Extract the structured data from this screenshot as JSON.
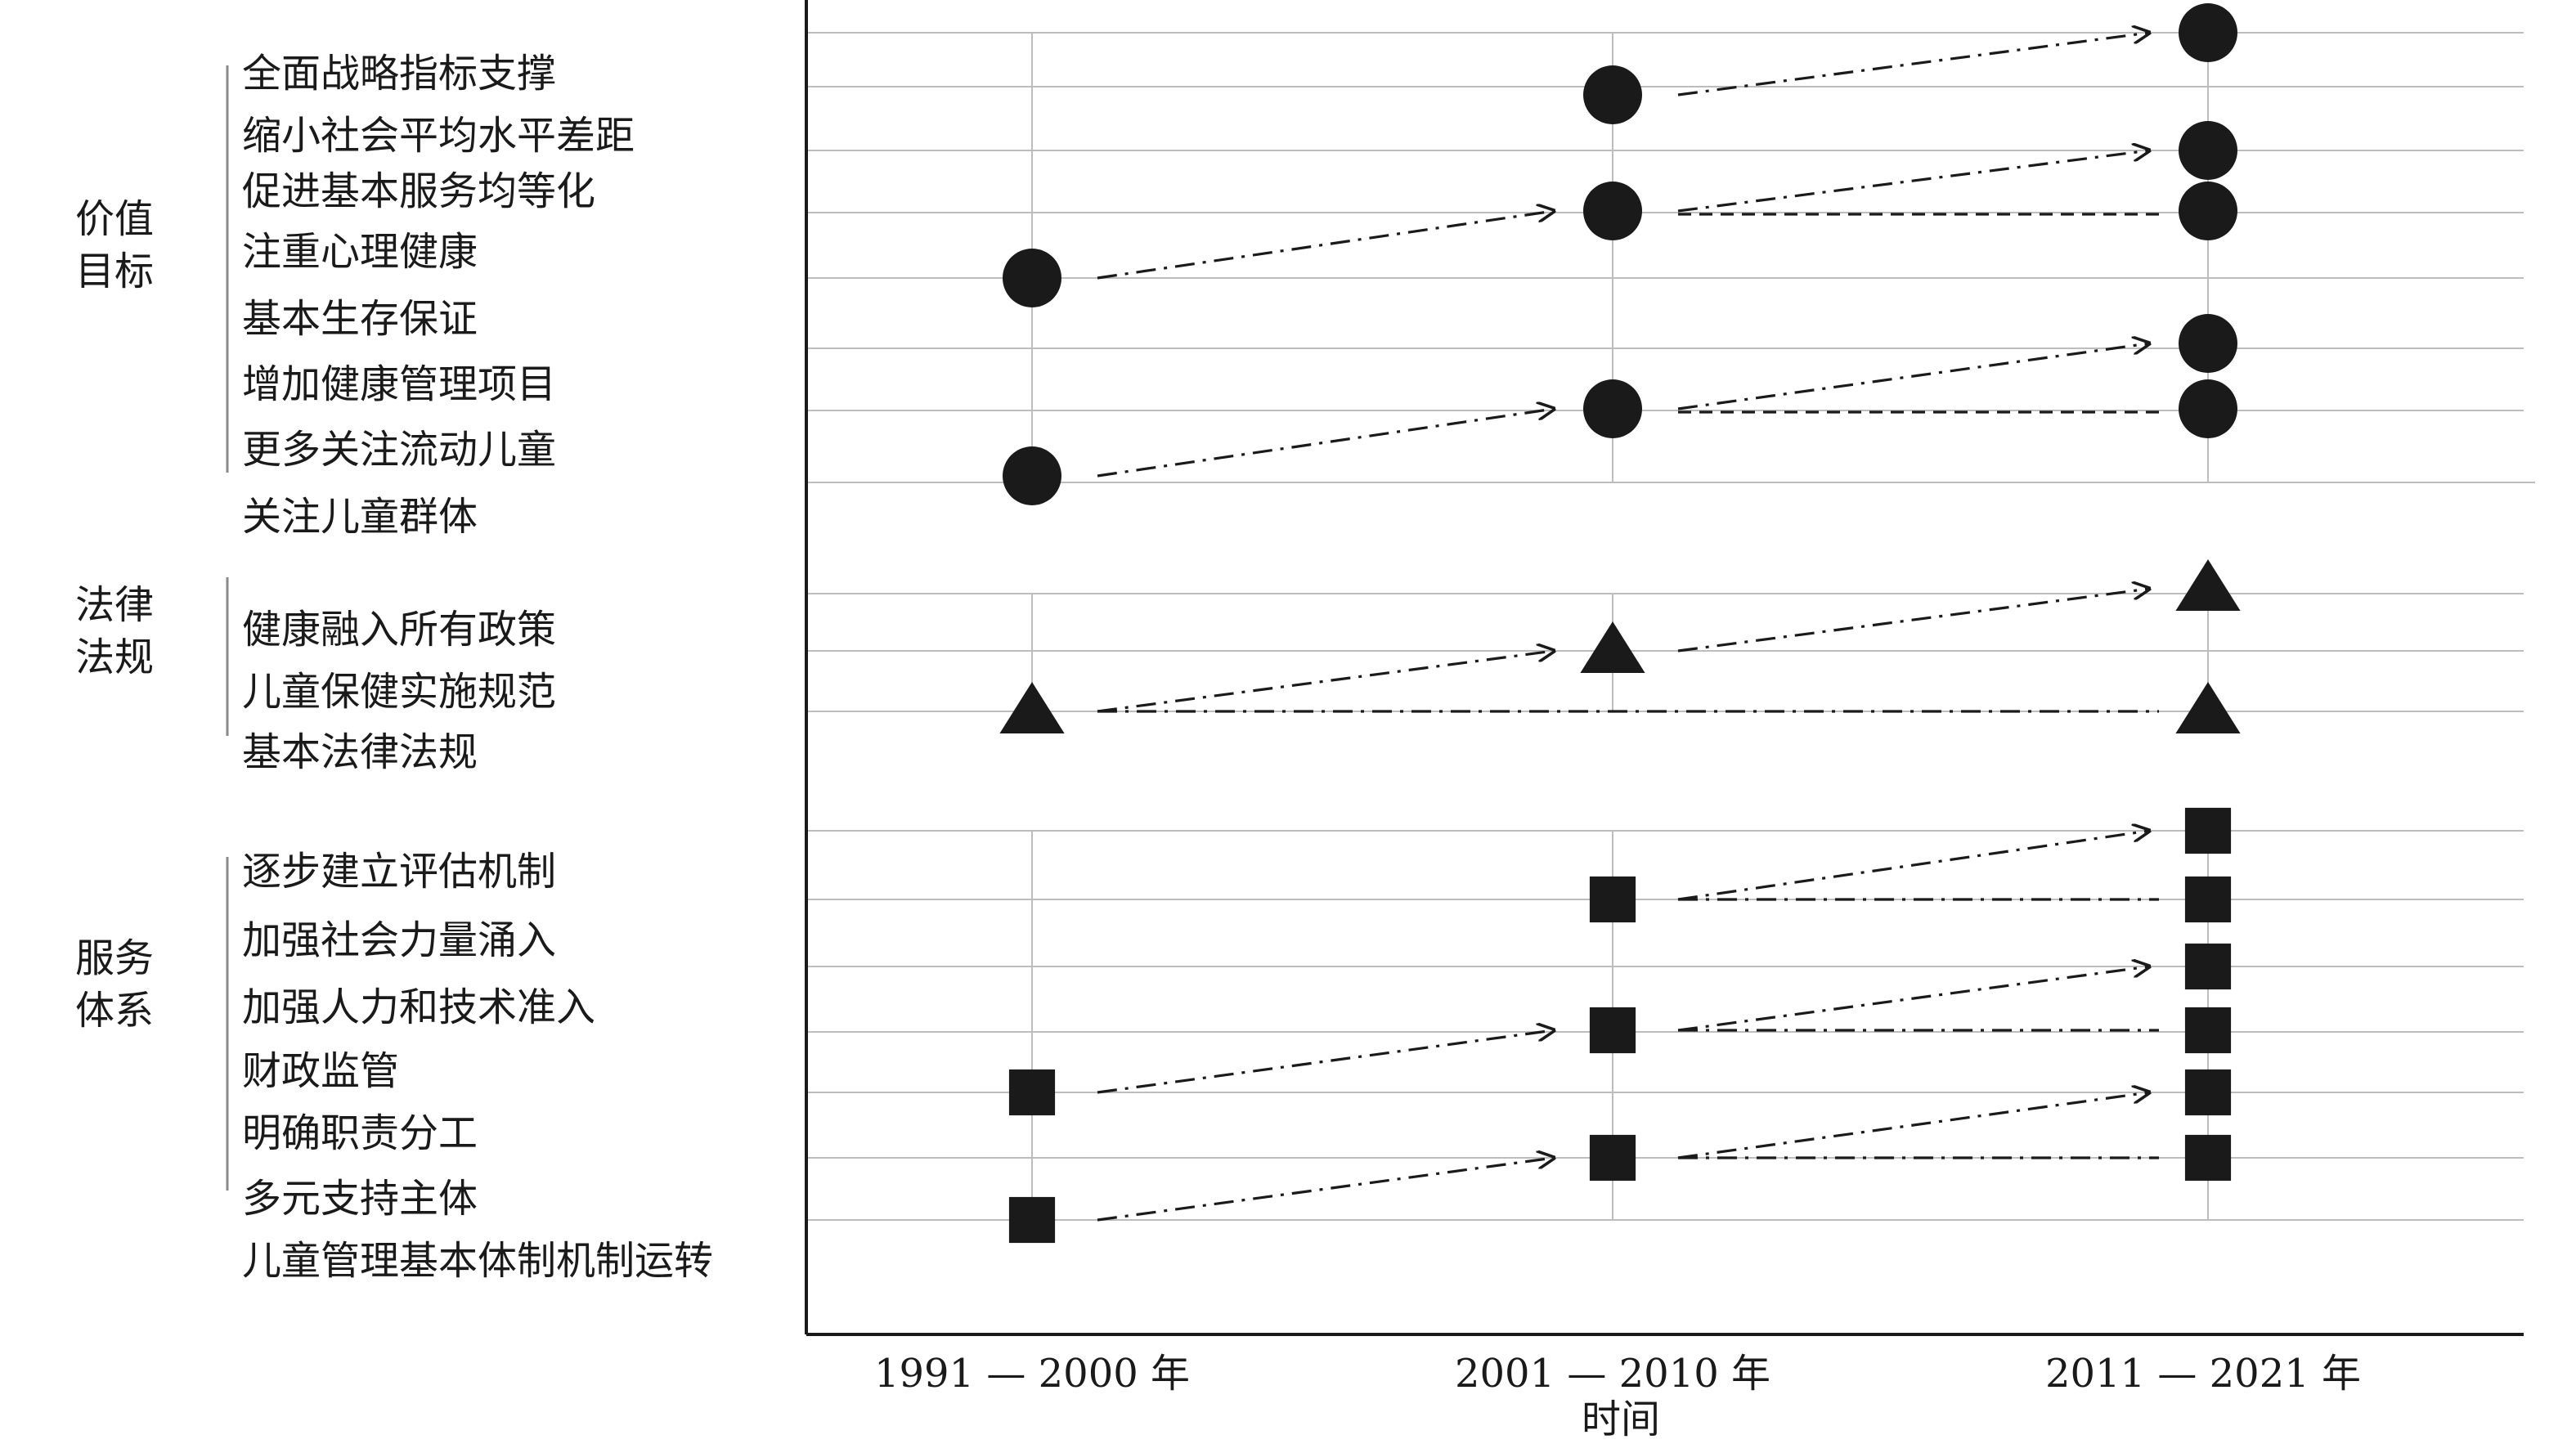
{
  "axis": {
    "x_title": "时间",
    "periods": [
      "1991 — 2000 年",
      "2001 — 2010 年",
      "2011 — 2021 年"
    ]
  },
  "groups": [
    {
      "id": "value-goals",
      "label_line1": "价值",
      "label_line2": "目标",
      "marker": "circle",
      "items": [
        "全面战略指标支撑",
        "缩小社会平均水平差距",
        "促进基本服务均等化",
        "注重心理健康",
        "基本生存保证",
        "增加健康管理项目",
        "更多关注流动儿童",
        "关注儿童群体"
      ]
    },
    {
      "id": "laws-regulations",
      "label_line1": "法律",
      "label_line2": "法规",
      "marker": "triangle",
      "items": [
        "健康融入所有政策",
        "儿童保健实施规范",
        "基本法律法规"
      ]
    },
    {
      "id": "service-system",
      "label_line1": "服务",
      "label_line2": "体系",
      "marker": "square",
      "items": [
        "逐步建立评估机制",
        "加强社会力量涌入",
        "加强人力和技术准入",
        "财政监管",
        "明确职责分工",
        "多元支持主体",
        "儿童管理基本体制机制运转"
      ]
    }
  ],
  "markers": [
    {
      "group": 0,
      "period": 0,
      "item": 4,
      "shape": "circle"
    },
    {
      "group": 0,
      "period": 0,
      "item": 7,
      "shape": "circle"
    },
    {
      "group": 0,
      "period": 1,
      "item": 1,
      "shape": "circle"
    },
    {
      "group": 0,
      "period": 1,
      "item": 3,
      "shape": "circle"
    },
    {
      "group": 0,
      "period": 1,
      "item": 6,
      "shape": "circle"
    },
    {
      "group": 0,
      "period": 2,
      "item": 0,
      "shape": "circle"
    },
    {
      "group": 0,
      "period": 2,
      "item": 2,
      "shape": "circle"
    },
    {
      "group": 0,
      "period": 2,
      "item": 3,
      "shape": "circle"
    },
    {
      "group": 0,
      "period": 2,
      "item": 5,
      "shape": "circle"
    },
    {
      "group": 0,
      "period": 2,
      "item": 6,
      "shape": "circle"
    },
    {
      "group": 1,
      "period": 0,
      "item": 2,
      "shape": "triangle"
    },
    {
      "group": 1,
      "period": 1,
      "item": 1,
      "shape": "triangle"
    },
    {
      "group": 1,
      "period": 2,
      "item": 0,
      "shape": "triangle"
    },
    {
      "group": 1,
      "period": 2,
      "item": 2,
      "shape": "triangle"
    },
    {
      "group": 2,
      "period": 0,
      "item": 4,
      "shape": "square"
    },
    {
      "group": 2,
      "period": 0,
      "item": 6,
      "shape": "square"
    },
    {
      "group": 2,
      "period": 1,
      "item": 1,
      "shape": "square"
    },
    {
      "group": 2,
      "period": 1,
      "item": 3,
      "shape": "square"
    },
    {
      "group": 2,
      "period": 1,
      "item": 5,
      "shape": "square"
    },
    {
      "group": 2,
      "period": 2,
      "item": 0,
      "shape": "square"
    },
    {
      "group": 2,
      "period": 2,
      "item": 1,
      "shape": "square"
    },
    {
      "group": 2,
      "period": 2,
      "item": 2,
      "shape": "square"
    },
    {
      "group": 2,
      "period": 2,
      "item": 3,
      "shape": "square"
    },
    {
      "group": 2,
      "period": 2,
      "item": 4,
      "shape": "square"
    },
    {
      "group": 2,
      "period": 2,
      "item": 5,
      "shape": "square"
    }
  ],
  "connections": [
    {
      "group": 0,
      "from": [
        0,
        4
      ],
      "to": [
        1,
        3
      ],
      "style": "dash-dot",
      "arrow": true
    },
    {
      "group": 0,
      "from": [
        0,
        7
      ],
      "to": [
        1,
        6
      ],
      "style": "dash-dot",
      "arrow": true
    },
    {
      "group": 0,
      "from": [
        1,
        1
      ],
      "to": [
        2,
        0
      ],
      "style": "dash-dot",
      "arrow": true
    },
    {
      "group": 0,
      "from": [
        1,
        3
      ],
      "to": [
        2,
        2
      ],
      "style": "dash-dot",
      "arrow": true
    },
    {
      "group": 0,
      "from": [
        1,
        3
      ],
      "to": [
        2,
        3
      ],
      "style": "dash",
      "arrow": false
    },
    {
      "group": 0,
      "from": [
        1,
        6
      ],
      "to": [
        2,
        5
      ],
      "style": "dash-dot",
      "arrow": true
    },
    {
      "group": 0,
      "from": [
        1,
        6
      ],
      "to": [
        2,
        6
      ],
      "style": "dash",
      "arrow": false
    },
    {
      "group": 1,
      "from": [
        0,
        2
      ],
      "to": [
        1,
        1
      ],
      "style": "dash-dot",
      "arrow": true
    },
    {
      "group": 1,
      "from": [
        1,
        1
      ],
      "to": [
        2,
        0
      ],
      "style": "dash-dot",
      "arrow": true
    },
    {
      "group": 1,
      "from": [
        0,
        2
      ],
      "to": [
        2,
        2
      ],
      "style": "dash-dot",
      "arrow": false
    },
    {
      "group": 2,
      "from": [
        0,
        4
      ],
      "to": [
        1,
        3
      ],
      "style": "dash-dot",
      "arrow": true
    },
    {
      "group": 2,
      "from": [
        0,
        6
      ],
      "to": [
        1,
        5
      ],
      "style": "dash-dot",
      "arrow": true
    },
    {
      "group": 2,
      "from": [
        1,
        1
      ],
      "to": [
        2,
        0
      ],
      "style": "dash-dot",
      "arrow": true
    },
    {
      "group": 2,
      "from": [
        1,
        1
      ],
      "to": [
        2,
        1
      ],
      "style": "dash-dot",
      "arrow": false
    },
    {
      "group": 2,
      "from": [
        1,
        3
      ],
      "to": [
        2,
        2
      ],
      "style": "dash-dot",
      "arrow": true
    },
    {
      "group": 2,
      "from": [
        1,
        3
      ],
      "to": [
        2,
        3
      ],
      "style": "dash-dot",
      "arrow": false
    },
    {
      "group": 2,
      "from": [
        1,
        5
      ],
      "to": [
        2,
        4
      ],
      "style": "dash-dot",
      "arrow": true
    },
    {
      "group": 2,
      "from": [
        1,
        5
      ],
      "to": [
        2,
        5
      ],
      "style": "dash-dot",
      "arrow": false
    }
  ]
}
